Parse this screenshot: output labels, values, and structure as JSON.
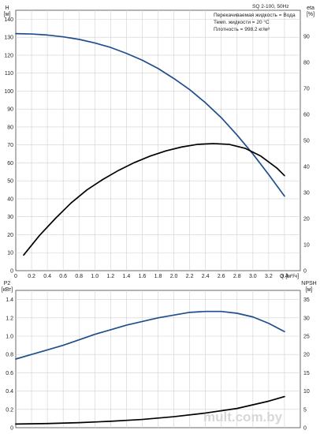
{
  "chart_data": [
    {
      "type": "line",
      "title": "SQ 2-100, 50Hz",
      "annotations": [
        "Перекачиваемая жидкость = Вода",
        "Темп. жидкости = 20 °C",
        "Плотность = 998.2 кг/м³"
      ],
      "xlabel": "Q [м³/ч]",
      "x_ticks": [
        "0",
        "0.2",
        "0.4",
        "0.6",
        "0.8",
        "1.0",
        "1.2",
        "1.4",
        "1.6",
        "1.8",
        "2.0",
        "2.2",
        "2.4",
        "2.6",
        "2.8",
        "3.0",
        "3.2",
        "3.4"
      ],
      "xlim": [
        0,
        3.6
      ],
      "left_axis": {
        "label": "H",
        "unit": "[м]",
        "ylim": [
          0,
          145
        ],
        "ticks": [
          "0",
          "10",
          "20",
          "30",
          "40",
          "50",
          "60",
          "70",
          "80",
          "90",
          "100",
          "110",
          "120",
          "130",
          "140"
        ]
      },
      "right_axis": {
        "label": "eta",
        "unit": "[%]",
        "ylim": [
          0,
          100
        ],
        "ticks": [
          "0",
          "10",
          "20",
          "30",
          "40",
          "50",
          "60",
          "70",
          "80",
          "90"
        ]
      },
      "grid": true,
      "series": [
        {
          "axis": "left",
          "color": "#1f4e8c",
          "x": [
            0,
            0.2,
            0.4,
            0.6,
            0.8,
            1.0,
            1.2,
            1.4,
            1.6,
            1.8,
            2.0,
            2.2,
            2.4,
            2.6,
            2.8,
            3.0,
            3.2,
            3.4
          ],
          "y": [
            132,
            131.8,
            131.2,
            130.2,
            128.8,
            126.8,
            124.3,
            121,
            117.2,
            112.6,
            107,
            100.8,
            93.5,
            85.2,
            75.5,
            65,
            53.5,
            41.5
          ]
        },
        {
          "axis": "right",
          "color": "#000000",
          "x": [
            0.1,
            0.3,
            0.5,
            0.7,
            0.9,
            1.1,
            1.3,
            1.5,
            1.7,
            1.9,
            2.1,
            2.3,
            2.5,
            2.7,
            2.9,
            3.1,
            3.3,
            3.4
          ],
          "y": [
            6,
            13.5,
            20,
            26,
            31,
            35,
            38.5,
            41.5,
            44,
            46,
            47.5,
            48.5,
            48.8,
            48.5,
            47,
            44,
            39.5,
            36.5
          ]
        }
      ]
    },
    {
      "type": "line",
      "xlim": [
        0,
        3.6
      ],
      "left_axis": {
        "label": "P2",
        "unit": "[кВт]",
        "ylim": [
          0,
          1.5
        ],
        "ticks": [
          "0",
          "0.2",
          "0.4",
          "0.6",
          "0.8",
          "1.0",
          "1.2",
          "1.4"
        ]
      },
      "right_axis": {
        "label": "NPSH",
        "unit": "[м]",
        "ylim": [
          0,
          37.5
        ],
        "ticks": [
          "0",
          "5",
          "10",
          "15",
          "20",
          "25",
          "30",
          "35"
        ]
      },
      "grid": true,
      "series": [
        {
          "axis": "left",
          "color": "#1f4e8c",
          "x": [
            0,
            0.2,
            0.4,
            0.6,
            0.8,
            1.0,
            1.2,
            1.4,
            1.6,
            1.8,
            2.0,
            2.2,
            2.4,
            2.6,
            2.8,
            3.0,
            3.2,
            3.4
          ],
          "y": [
            0.75,
            0.8,
            0.85,
            0.9,
            0.96,
            1.02,
            1.07,
            1.12,
            1.16,
            1.2,
            1.23,
            1.26,
            1.27,
            1.27,
            1.25,
            1.21,
            1.14,
            1.05
          ]
        },
        {
          "axis": "left",
          "color": "#000000",
          "x": [
            0,
            0.4,
            0.8,
            1.2,
            1.6,
            2.0,
            2.4,
            2.8,
            3.0,
            3.2,
            3.4
          ],
          "y": [
            0.04,
            0.045,
            0.055,
            0.07,
            0.09,
            0.12,
            0.16,
            0.21,
            0.25,
            0.29,
            0.34
          ]
        }
      ]
    }
  ],
  "watermark": "mult.com.by"
}
